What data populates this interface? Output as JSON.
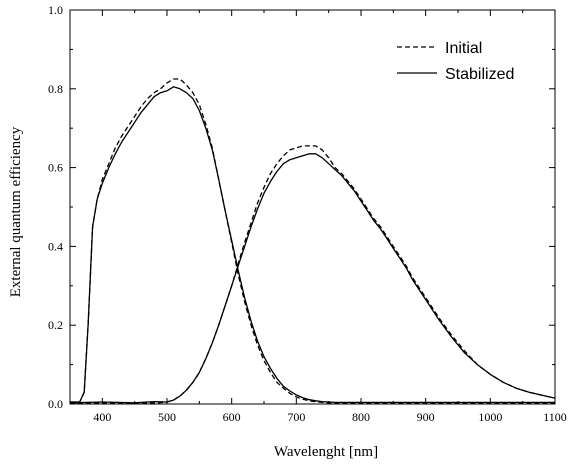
{
  "chart_data": {
    "type": "line",
    "title": "",
    "xlabel": "Wavelenght [nm]",
    "ylabel": "External quantum efficiency",
    "xlim": [
      350,
      1100
    ],
    "ylim": [
      0.0,
      1.0
    ],
    "x_ticks": [
      "400",
      "500",
      "600",
      "700",
      "800",
      "900",
      "1000",
      "1100"
    ],
    "y_ticks": [
      "0.0",
      "0.2",
      "0.4",
      "0.6",
      "0.8",
      "1.0"
    ],
    "legend": {
      "placement": "top-right",
      "entries": [
        {
          "label": "Initial",
          "style": "dashed"
        },
        {
          "label": "Stabilized",
          "style": "solid"
        }
      ]
    },
    "grid": false,
    "series": [
      {
        "name": "Initial",
        "style": "dashed",
        "color": "#000000",
        "x": [
          350,
          365,
          372,
          378,
          385,
          392,
          400,
          410,
          420,
          430,
          440,
          450,
          460,
          470,
          480,
          490,
          500,
          510,
          520,
          530,
          540,
          550,
          560,
          570,
          580,
          590,
          600,
          610,
          620,
          630,
          640,
          650,
          660,
          670,
          680,
          690,
          700,
          710,
          720,
          730,
          740,
          750,
          760,
          770,
          780,
          800,
          820,
          840,
          860,
          880,
          900,
          950,
          1000,
          1050,
          1100
        ],
        "y": [
          0.005,
          0.005,
          0.03,
          0.2,
          0.45,
          0.52,
          0.57,
          0.61,
          0.65,
          0.68,
          0.705,
          0.73,
          0.755,
          0.775,
          0.79,
          0.8,
          0.815,
          0.825,
          0.825,
          0.81,
          0.79,
          0.76,
          0.71,
          0.65,
          0.57,
          0.49,
          0.41,
          0.33,
          0.26,
          0.2,
          0.15,
          0.11,
          0.08,
          0.055,
          0.04,
          0.027,
          0.018,
          0.012,
          0.008,
          0.006,
          0.004,
          0.003,
          0.002,
          0.002,
          0.002,
          0.002,
          0.002,
          0.002,
          0.002,
          0.002,
          0.002,
          0.002,
          0.002,
          0.002,
          0.002
        ]
      },
      {
        "name": "Stabilized",
        "style": "solid",
        "color": "#000000",
        "x": [
          350,
          365,
          372,
          378,
          385,
          392,
          400,
          410,
          420,
          430,
          440,
          450,
          460,
          470,
          480,
          490,
          500,
          510,
          520,
          530,
          540,
          550,
          560,
          570,
          580,
          590,
          600,
          610,
          620,
          630,
          640,
          650,
          660,
          670,
          680,
          690,
          700,
          710,
          720,
          730,
          740,
          750,
          760,
          770,
          780,
          800,
          820,
          840,
          860,
          880,
          900,
          950,
          1000,
          1050,
          1100
        ],
        "y": [
          0.005,
          0.005,
          0.03,
          0.2,
          0.45,
          0.52,
          0.56,
          0.6,
          0.635,
          0.665,
          0.69,
          0.715,
          0.74,
          0.76,
          0.78,
          0.79,
          0.795,
          0.805,
          0.8,
          0.79,
          0.775,
          0.745,
          0.7,
          0.645,
          0.57,
          0.49,
          0.415,
          0.34,
          0.27,
          0.21,
          0.16,
          0.12,
          0.09,
          0.065,
          0.045,
          0.033,
          0.023,
          0.016,
          0.011,
          0.008,
          0.006,
          0.005,
          0.004,
          0.004,
          0.004,
          0.004,
          0.004,
          0.004,
          0.004,
          0.004,
          0.004,
          0.004,
          0.004,
          0.004,
          0.004
        ]
      },
      {
        "name": "Initial",
        "style": "dashed",
        "color": "#000000",
        "x": [
          350,
          400,
          450,
          480,
          500,
          510,
          520,
          530,
          540,
          550,
          560,
          570,
          580,
          590,
          600,
          610,
          620,
          630,
          640,
          650,
          660,
          670,
          680,
          690,
          700,
          710,
          720,
          730,
          740,
          750,
          760,
          770,
          780,
          790,
          800,
          810,
          820,
          830,
          840,
          850,
          860,
          870,
          880,
          900,
          920,
          940,
          960,
          980,
          1000,
          1020,
          1040,
          1060,
          1080,
          1100
        ],
        "y": [
          0.002,
          0.002,
          0.002,
          0.002,
          0.005,
          0.01,
          0.02,
          0.035,
          0.055,
          0.08,
          0.115,
          0.155,
          0.2,
          0.25,
          0.3,
          0.355,
          0.41,
          0.46,
          0.51,
          0.55,
          0.585,
          0.61,
          0.63,
          0.645,
          0.65,
          0.655,
          0.655,
          0.655,
          0.645,
          0.625,
          0.6,
          0.585,
          0.565,
          0.545,
          0.52,
          0.495,
          0.47,
          0.45,
          0.425,
          0.4,
          0.375,
          0.35,
          0.32,
          0.27,
          0.22,
          0.175,
          0.135,
          0.1,
          0.075,
          0.055,
          0.04,
          0.03,
          0.022,
          0.015
        ]
      },
      {
        "name": "Stabilized",
        "style": "solid",
        "color": "#000000",
        "x": [
          350,
          400,
          450,
          480,
          500,
          510,
          520,
          530,
          540,
          550,
          560,
          570,
          580,
          590,
          600,
          610,
          620,
          630,
          640,
          650,
          660,
          670,
          680,
          690,
          700,
          710,
          720,
          730,
          740,
          750,
          760,
          770,
          780,
          790,
          800,
          810,
          820,
          830,
          840,
          850,
          860,
          870,
          880,
          900,
          920,
          940,
          960,
          980,
          1000,
          1020,
          1040,
          1060,
          1080,
          1100
        ],
        "y": [
          0.003,
          0.005,
          0.003,
          0.006,
          0.005,
          0.01,
          0.02,
          0.035,
          0.055,
          0.08,
          0.115,
          0.155,
          0.2,
          0.25,
          0.3,
          0.35,
          0.4,
          0.45,
          0.495,
          0.535,
          0.565,
          0.59,
          0.61,
          0.62,
          0.625,
          0.63,
          0.635,
          0.635,
          0.625,
          0.61,
          0.595,
          0.58,
          0.56,
          0.54,
          0.515,
          0.49,
          0.465,
          0.445,
          0.42,
          0.395,
          0.37,
          0.345,
          0.315,
          0.265,
          0.215,
          0.17,
          0.13,
          0.1,
          0.075,
          0.055,
          0.04,
          0.03,
          0.022,
          0.015
        ]
      }
    ]
  }
}
